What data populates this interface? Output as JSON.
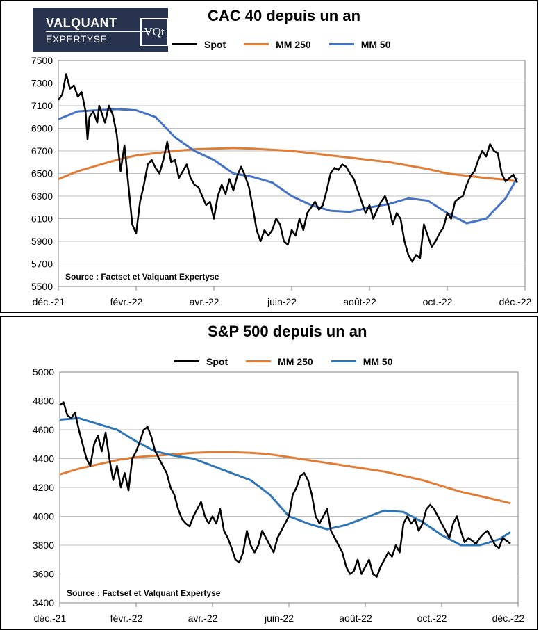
{
  "logo": {
    "line1": "VALQUANT",
    "line2": "EXPERTYSE",
    "mark": "VQt"
  },
  "chart_data": [
    {
      "type": "line",
      "title": "CAC 40 depuis un an",
      "legend": {
        "placement": "top"
      },
      "ylim": [
        5500,
        7500
      ],
      "yticks": [
        5500,
        5700,
        5900,
        6100,
        6300,
        6500,
        6700,
        6900,
        7100,
        7300,
        7500
      ],
      "xlim": [
        0,
        12
      ],
      "xtick_labels": [
        "déc.-21",
        "févr.-22",
        "avr.-22",
        "juin-22",
        "août-22",
        "oct.-22",
        "déc.-22"
      ],
      "grid": true,
      "annotation": "Source : Factset et Valquant Expertyse",
      "series": [
        {
          "name": "Spot",
          "color": "#000000",
          "x": [
            0,
            0.1,
            0.2,
            0.3,
            0.4,
            0.5,
            0.6,
            0.7,
            0.75,
            0.8,
            0.9,
            1.0,
            1.05,
            1.1,
            1.2,
            1.3,
            1.4,
            1.5,
            1.6,
            1.7,
            1.8,
            1.9,
            2.0,
            2.1,
            2.2,
            2.3,
            2.4,
            2.5,
            2.6,
            2.7,
            2.8,
            2.9,
            3.0,
            3.1,
            3.2,
            3.3,
            3.4,
            3.5,
            3.6,
            3.7,
            3.8,
            3.9,
            4.0,
            4.1,
            4.2,
            4.3,
            4.4,
            4.5,
            4.6,
            4.7,
            4.8,
            4.9,
            5.0,
            5.1,
            5.2,
            5.3,
            5.4,
            5.5,
            5.6,
            5.7,
            5.8,
            5.9,
            6.0,
            6.1,
            6.2,
            6.3,
            6.4,
            6.5,
            6.6,
            6.7,
            6.8,
            6.9,
            7.0,
            7.1,
            7.2,
            7.3,
            7.4,
            7.5,
            7.6,
            7.7,
            7.8,
            7.9,
            8.0,
            8.1,
            8.2,
            8.3,
            8.4,
            8.5,
            8.6,
            8.7,
            8.8,
            8.9,
            9.0,
            9.1,
            9.2,
            9.3,
            9.4,
            9.5,
            9.6,
            9.7,
            9.8,
            9.9,
            10.0,
            10.1,
            10.2,
            10.3,
            10.4,
            10.5,
            10.6,
            10.7,
            10.8,
            10.9,
            11.0,
            11.1,
            11.2,
            11.3,
            11.4,
            11.5,
            11.6,
            11.7,
            11.8
          ],
          "y": [
            7150,
            7200,
            7380,
            7250,
            7280,
            7180,
            7220,
            7050,
            6800,
            7000,
            7050,
            6950,
            7100,
            7050,
            6950,
            7100,
            7020,
            6850,
            6520,
            6750,
            6400,
            6050,
            5970,
            6250,
            6400,
            6580,
            6620,
            6550,
            6500,
            6620,
            6780,
            6600,
            6620,
            6460,
            6520,
            6580,
            6460,
            6400,
            6380,
            6300,
            6220,
            6250,
            6100,
            6300,
            6400,
            6320,
            6450,
            6350,
            6480,
            6560,
            6480,
            6380,
            6200,
            6000,
            5900,
            6000,
            5950,
            6000,
            6100,
            6050,
            5900,
            5870,
            6000,
            5950,
            6100,
            6000,
            6150,
            6200,
            6250,
            6180,
            6220,
            6350,
            6500,
            6550,
            6530,
            6580,
            6560,
            6500,
            6450,
            6350,
            6250,
            6150,
            6220,
            6100,
            6180,
            6250,
            6300,
            6200,
            6050,
            6150,
            6100,
            5900,
            5780,
            5720,
            5780,
            5750,
            6050,
            5950,
            5850,
            5900,
            5970,
            6020,
            6150,
            6100,
            6250,
            6280,
            6300,
            6400,
            6480,
            6520,
            6620,
            6700,
            6650,
            6760,
            6700,
            6680,
            6500,
            6430,
            6460,
            6490,
            6420
          ]
        },
        {
          "name": "MM 250",
          "color": "#e07c35",
          "x": [
            0,
            0.5,
            1,
            1.5,
            2,
            2.5,
            3,
            3.5,
            4,
            4.5,
            5,
            5.5,
            6,
            6.5,
            7,
            7.5,
            8,
            8.5,
            9,
            9.5,
            10,
            10.5,
            11,
            11.5,
            11.8
          ],
          "y": [
            6450,
            6520,
            6570,
            6620,
            6660,
            6680,
            6700,
            6715,
            6720,
            6725,
            6720,
            6710,
            6700,
            6680,
            6660,
            6640,
            6620,
            6600,
            6570,
            6540,
            6500,
            6480,
            6460,
            6445,
            6430
          ]
        },
        {
          "name": "MM 50",
          "color": "#4472c4",
          "x": [
            0,
            0.5,
            1,
            1.5,
            2,
            2.5,
            3,
            3.5,
            4,
            4.5,
            5,
            5.5,
            6,
            6.5,
            7,
            7.5,
            8,
            8.5,
            9,
            9.5,
            10,
            10.5,
            11,
            11.5,
            11.8
          ],
          "y": [
            6980,
            7050,
            7060,
            7070,
            7060,
            7000,
            6820,
            6700,
            6620,
            6500,
            6470,
            6420,
            6300,
            6220,
            6170,
            6160,
            6200,
            6230,
            6280,
            6260,
            6150,
            6060,
            6100,
            6280,
            6460
          ]
        }
      ]
    },
    {
      "type": "line",
      "title": "S&P 500 depuis un an",
      "legend": {
        "placement": "top"
      },
      "ylim": [
        3400,
        5000
      ],
      "yticks": [
        3400,
        3600,
        3800,
        4000,
        4200,
        4400,
        4600,
        4800,
        5000
      ],
      "xlim": [
        0,
        12
      ],
      "xtick_labels": [
        "déc.-21",
        "févr.-22",
        "avr.-22",
        "juin-22",
        "août-22",
        "oct.-22",
        "déc.-22"
      ],
      "grid": true,
      "annotation": "Source : Factset et Valquant Expertyse",
      "series": [
        {
          "name": "Spot",
          "color": "#000000",
          "x": [
            0,
            0.1,
            0.2,
            0.3,
            0.4,
            0.5,
            0.6,
            0.7,
            0.8,
            0.9,
            1.0,
            1.1,
            1.2,
            1.3,
            1.4,
            1.5,
            1.6,
            1.7,
            1.8,
            1.9,
            2.0,
            2.1,
            2.2,
            2.3,
            2.4,
            2.5,
            2.6,
            2.7,
            2.8,
            2.9,
            3.0,
            3.1,
            3.2,
            3.3,
            3.4,
            3.5,
            3.6,
            3.7,
            3.8,
            3.9,
            4.0,
            4.1,
            4.2,
            4.3,
            4.4,
            4.5,
            4.6,
            4.7,
            4.8,
            4.9,
            5.0,
            5.1,
            5.2,
            5.3,
            5.4,
            5.5,
            5.6,
            5.7,
            5.8,
            5.9,
            6.0,
            6.1,
            6.2,
            6.3,
            6.4,
            6.5,
            6.6,
            6.7,
            6.8,
            6.9,
            7.0,
            7.1,
            7.2,
            7.3,
            7.4,
            7.5,
            7.6,
            7.7,
            7.8,
            7.9,
            8.0,
            8.1,
            8.2,
            8.3,
            8.4,
            8.5,
            8.6,
            8.7,
            8.8,
            8.9,
            9.0,
            9.1,
            9.2,
            9.3,
            9.4,
            9.5,
            9.6,
            9.7,
            9.8,
            9.9,
            10.0,
            10.1,
            10.2,
            10.3,
            10.4,
            10.5,
            10.6,
            10.7,
            10.8,
            10.9,
            11.0,
            11.1,
            11.2,
            11.3,
            11.4,
            11.5,
            11.6,
            11.7,
            11.8
          ],
          "y": [
            4770,
            4790,
            4700,
            4680,
            4720,
            4600,
            4500,
            4400,
            4350,
            4500,
            4560,
            4450,
            4580,
            4400,
            4250,
            4350,
            4200,
            4300,
            4180,
            4400,
            4450,
            4520,
            4600,
            4620,
            4550,
            4450,
            4400,
            4350,
            4300,
            4200,
            4150,
            4050,
            3980,
            3950,
            3930,
            4000,
            4050,
            4100,
            4000,
            3950,
            4000,
            3950,
            4050,
            3900,
            3850,
            3780,
            3700,
            3680,
            3750,
            3900,
            3800,
            3750,
            3800,
            3900,
            3850,
            3800,
            3750,
            3850,
            3900,
            3950,
            4000,
            4150,
            4200,
            4280,
            4300,
            4250,
            4150,
            4000,
            3950,
            4000,
            4050,
            3900,
            3850,
            3800,
            3750,
            3650,
            3600,
            3620,
            3700,
            3600,
            3650,
            3700,
            3600,
            3580,
            3650,
            3700,
            3750,
            3720,
            3800,
            3750,
            3950,
            4000,
            3950,
            3980,
            3900,
            3950,
            4050,
            4080,
            4050,
            4000,
            3950,
            3900,
            3850,
            3950,
            4000,
            3900,
            3820,
            3850,
            3830,
            3810,
            3850,
            3880,
            3900,
            3850,
            3800,
            3780,
            3850,
            3830,
            3810
          ]
        },
        {
          "name": "MM 250",
          "color": "#e07c35",
          "x": [
            0,
            0.5,
            1,
            1.5,
            2,
            2.5,
            3,
            3.5,
            4,
            4.5,
            5,
            5.5,
            6,
            6.5,
            7,
            7.5,
            8,
            8.5,
            9,
            9.5,
            10,
            10.5,
            11,
            11.5,
            11.8
          ],
          "y": [
            4290,
            4330,
            4360,
            4390,
            4410,
            4420,
            4430,
            4440,
            4445,
            4445,
            4440,
            4430,
            4410,
            4390,
            4370,
            4350,
            4330,
            4310,
            4280,
            4250,
            4210,
            4170,
            4140,
            4110,
            4090
          ]
        },
        {
          "name": "MM 50",
          "color": "#2e75b6",
          "x": [
            0,
            0.5,
            1,
            1.5,
            2,
            2.5,
            3,
            3.5,
            4,
            4.5,
            5,
            5.5,
            6,
            6.5,
            7,
            7.5,
            8,
            8.5,
            9,
            9.5,
            10,
            10.5,
            11,
            11.5,
            11.8
          ],
          "y": [
            4670,
            4680,
            4640,
            4600,
            4520,
            4450,
            4420,
            4400,
            4350,
            4300,
            4250,
            4150,
            4000,
            3950,
            3910,
            3940,
            3990,
            4040,
            4030,
            3960,
            3870,
            3800,
            3800,
            3840,
            3890
          ]
        }
      ]
    }
  ]
}
